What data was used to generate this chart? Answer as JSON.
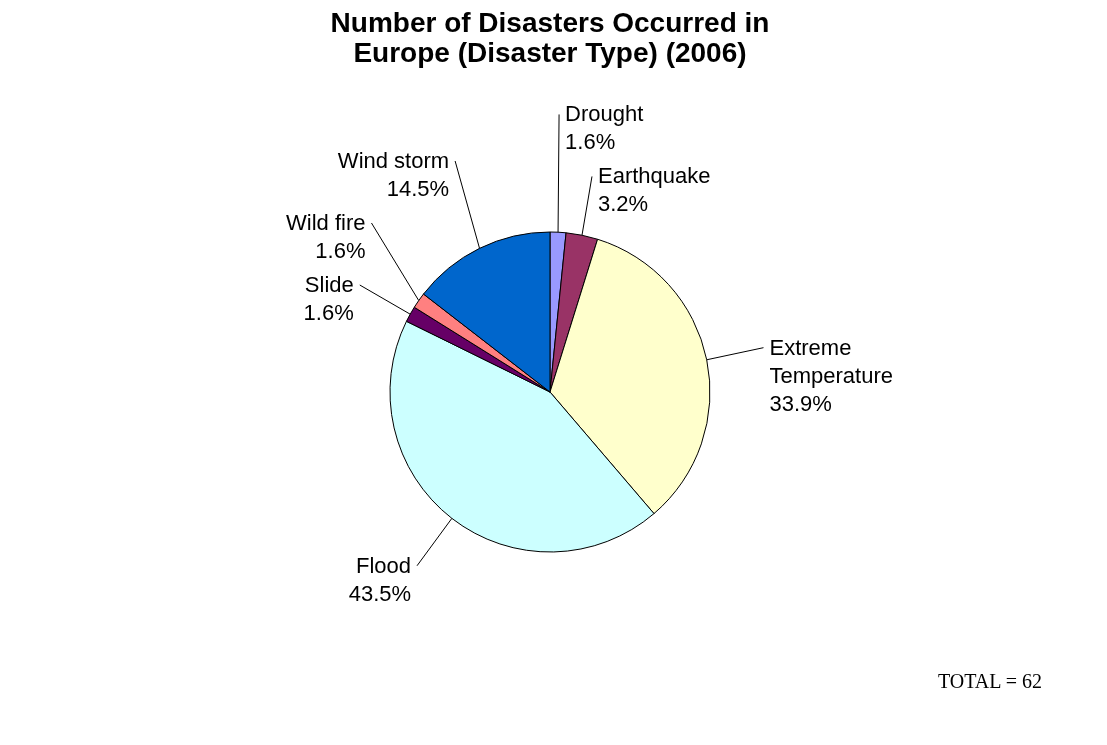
{
  "chart_data": {
    "type": "pie",
    "title": "Number of Disasters Occurred in Europe (Disaster Type) (2006)",
    "categories": [
      "Drought",
      "Earthquake",
      "Extreme Temperature",
      "Flood",
      "Slide",
      "Wild fire",
      "Wind storm"
    ],
    "values": [
      1.6,
      3.2,
      33.9,
      43.5,
      1.6,
      1.6,
      14.5
    ],
    "value_labels": [
      "1.6%",
      "3.2%",
      "33.9%",
      "43.5%",
      "1.6%",
      "1.6%",
      "14.5%"
    ],
    "colors": [
      "#9999ff",
      "#993366",
      "#ffffcc",
      "#ccffff",
      "#660066",
      "#ff8080",
      "#0066cc"
    ],
    "annotations": [
      "TOTAL =  62"
    ],
    "legend": false
  }
}
